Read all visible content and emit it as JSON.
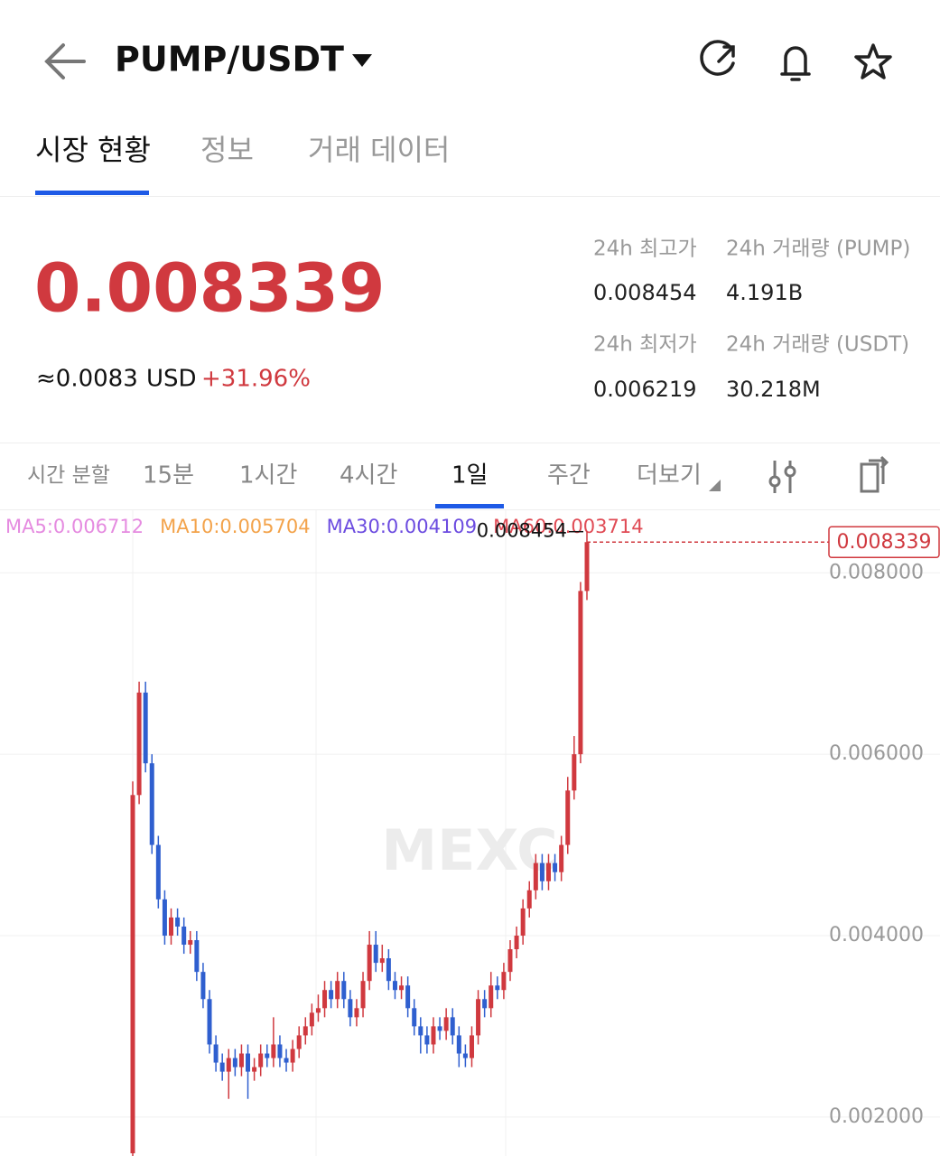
{
  "header": {
    "title": "PUMP/USDT"
  },
  "tabs": [
    "시장 현황",
    "정보",
    "거래 데이터"
  ],
  "price": {
    "last": "0.008339",
    "approx": "≈0.0083",
    "currency": "USD",
    "change": "+31.96%"
  },
  "stats": [
    {
      "label": "24h 최고가",
      "value": "0.008454"
    },
    {
      "label": "24h 거래량 (PUMP)",
      "value": "4.191B"
    },
    {
      "label": "24h 최저가",
      "value": "0.006219"
    },
    {
      "label": "24h 거래량 (USDT)",
      "value": "30.218M"
    }
  ],
  "timeframes": [
    "시간 분할",
    "15분",
    "1시간",
    "4시간",
    "1일",
    "주간",
    "더보기"
  ],
  "chart_data": {
    "type": "candlestick",
    "indicators": [
      {
        "label": "MA5:0.006712",
        "color": "#e58be0"
      },
      {
        "label": "MA10:0.005704",
        "color": "#f3a34b"
      },
      {
        "label": "MA30:0.004109",
        "color": "#6c4ce0"
      },
      {
        "label": "MA60:0.003714",
        "color": "#e04b55"
      }
    ],
    "watermark": "MEXC",
    "up_color": "#d0393f",
    "down_color": "#2f5fcf",
    "ylim": [
      0.00157,
      0.00869
    ],
    "yticks": [
      {
        "value": 0.002,
        "label": "0.002000"
      },
      {
        "value": 0.004,
        "label": "0.004000"
      },
      {
        "value": 0.006,
        "label": "0.006000"
      },
      {
        "value": 0.008,
        "label": "0.008000"
      }
    ],
    "grid": true,
    "open": [
      0.0016,
      0.00555,
      0.00668,
      0.0059,
      0.005,
      0.0044,
      0.004,
      0.0042,
      0.0041,
      0.0039,
      0.00395,
      0.0036,
      0.0033,
      0.0028,
      0.0026,
      0.0025,
      0.00265,
      0.00255,
      0.0027,
      0.0025,
      0.00255,
      0.0027,
      0.00265,
      0.0028,
      0.00265,
      0.0026,
      0.00275,
      0.0029,
      0.003,
      0.00315,
      0.0032,
      0.0034,
      0.0033,
      0.0035,
      0.0033,
      0.0031,
      0.0032,
      0.0035,
      0.0039,
      0.0037,
      0.00375,
      0.0035,
      0.0034,
      0.00345,
      0.0032,
      0.003,
      0.0029,
      0.0028,
      0.003,
      0.00295,
      0.0031,
      0.0029,
      0.0027,
      0.00265,
      0.0029,
      0.0033,
      0.0032,
      0.00345,
      0.0034,
      0.0036,
      0.00385,
      0.004,
      0.0043,
      0.0045,
      0.0048,
      0.0046,
      0.0048,
      0.0047,
      0.005,
      0.0056,
      0.006,
      0.0078
    ],
    "high": [
      0.0057,
      0.0068,
      0.0068,
      0.006,
      0.0051,
      0.0045,
      0.0043,
      0.0043,
      0.0042,
      0.00405,
      0.00405,
      0.0037,
      0.0034,
      0.0029,
      0.0027,
      0.00275,
      0.00275,
      0.0028,
      0.0028,
      0.00265,
      0.0028,
      0.0028,
      0.0031,
      0.0029,
      0.00275,
      0.00285,
      0.003,
      0.0031,
      0.00325,
      0.00335,
      0.0035,
      0.0035,
      0.0036,
      0.0036,
      0.0034,
      0.0033,
      0.0036,
      0.00405,
      0.00405,
      0.0039,
      0.00385,
      0.0036,
      0.00355,
      0.00355,
      0.0033,
      0.0031,
      0.003,
      0.0031,
      0.0031,
      0.0032,
      0.0032,
      0.003,
      0.0028,
      0.003,
      0.0034,
      0.0034,
      0.0036,
      0.00355,
      0.0037,
      0.00395,
      0.0041,
      0.0044,
      0.0046,
      0.0049,
      0.0049,
      0.0049,
      0.0049,
      0.0051,
      0.00575,
      0.0062,
      0.0079,
      0.008454
    ],
    "low": [
      0.00157,
      0.00545,
      0.0058,
      0.0049,
      0.0043,
      0.0039,
      0.0039,
      0.004,
      0.0038,
      0.0038,
      0.0035,
      0.0032,
      0.0027,
      0.0025,
      0.0024,
      0.0022,
      0.00245,
      0.00245,
      0.0022,
      0.0024,
      0.00245,
      0.00255,
      0.00255,
      0.00255,
      0.0025,
      0.0025,
      0.00265,
      0.0028,
      0.0029,
      0.00305,
      0.0031,
      0.0032,
      0.0032,
      0.0032,
      0.003,
      0.003,
      0.0031,
      0.0034,
      0.0036,
      0.0036,
      0.0034,
      0.0033,
      0.0033,
      0.0031,
      0.0029,
      0.0027,
      0.0027,
      0.0027,
      0.00285,
      0.00285,
      0.0028,
      0.00255,
      0.00255,
      0.00255,
      0.0028,
      0.0031,
      0.0031,
      0.0033,
      0.0033,
      0.0035,
      0.00375,
      0.0039,
      0.0042,
      0.0044,
      0.0045,
      0.0045,
      0.0046,
      0.0046,
      0.0049,
      0.0055,
      0.0059,
      0.0077
    ],
    "close": [
      0.00555,
      0.00668,
      0.0059,
      0.005,
      0.0044,
      0.004,
      0.0042,
      0.0041,
      0.0039,
      0.00395,
      0.0036,
      0.0033,
      0.0028,
      0.0026,
      0.0025,
      0.00265,
      0.00255,
      0.0027,
      0.0025,
      0.00255,
      0.0027,
      0.00265,
      0.0028,
      0.00265,
      0.0026,
      0.00275,
      0.0029,
      0.003,
      0.00315,
      0.0032,
      0.0034,
      0.0033,
      0.0035,
      0.0033,
      0.0031,
      0.0032,
      0.0035,
      0.0039,
      0.0037,
      0.00375,
      0.0035,
      0.0034,
      0.00345,
      0.0032,
      0.003,
      0.0029,
      0.0028,
      0.003,
      0.00295,
      0.0031,
      0.0029,
      0.0027,
      0.00265,
      0.0029,
      0.0033,
      0.0032,
      0.00345,
      0.0034,
      0.0036,
      0.00385,
      0.004,
      0.0043,
      0.0045,
      0.0048,
      0.0046,
      0.0048,
      0.0047,
      0.005,
      0.0056,
      0.006,
      0.0078,
      0.008339
    ]
  }
}
